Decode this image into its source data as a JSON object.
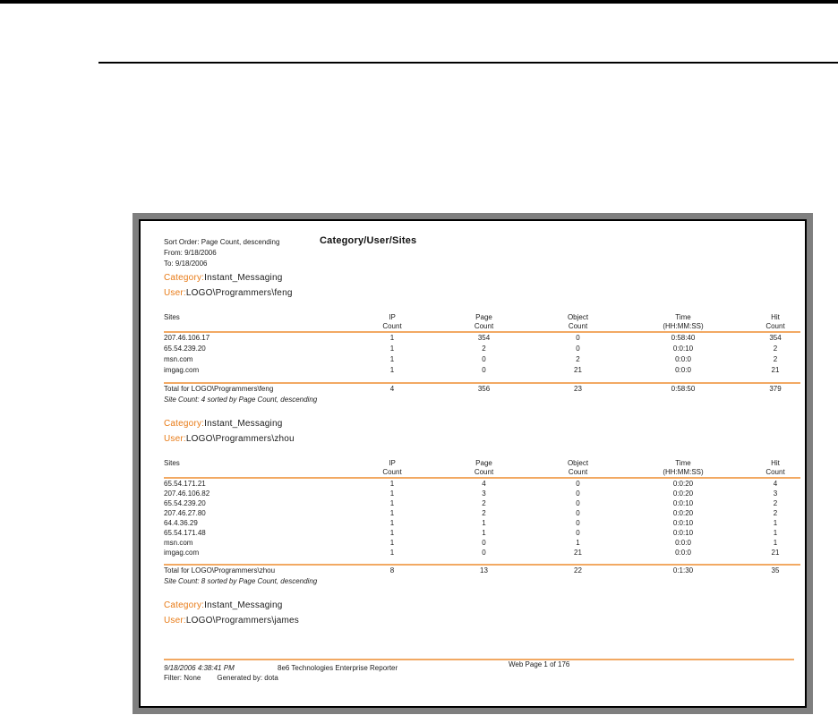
{
  "report": {
    "title": "Category/User/Sites",
    "meta_lines": [
      "Sort Order: Page Count, descending",
      "From: 9/18/2006",
      "To: 9/18/2006"
    ],
    "columns": [
      {
        "line1": "Sites",
        "line2": ""
      },
      {
        "line1": "IP",
        "line2": "Count"
      },
      {
        "line1": "Page",
        "line2": "Count"
      },
      {
        "line1": "Object",
        "line2": "Count"
      },
      {
        "line1": "Time",
        "line2": "(HH:MM:SS)"
      },
      {
        "line1": "Hit",
        "line2": "Count"
      }
    ],
    "sections": [
      {
        "category_label": "Category:",
        "category_value": "Instant_Messaging",
        "user_label": "User:",
        "user_value": "LOGO\\Programmers\\feng",
        "rows": [
          [
            "207.46.106.17",
            "1",
            "354",
            "0",
            "0:58:40",
            "354"
          ],
          [
            "65.54.239.20",
            "1",
            "2",
            "0",
            "0:0:10",
            "2"
          ],
          [
            "msn.com",
            "1",
            "0",
            "2",
            "0:0:0",
            "2"
          ],
          [
            "imgag.com",
            "1",
            "0",
            "21",
            "0:0:0",
            "21"
          ]
        ],
        "total_row": [
          "Total for LOGO\\Programmers\\feng",
          "4",
          "356",
          "23",
          "0:58:50",
          "379"
        ],
        "site_count_note": "Site Count: 4 sorted by Page Count, descending"
      },
      {
        "category_label": "Category:",
        "category_value": "Instant_Messaging",
        "user_label": "User:",
        "user_value": "LOGO\\Programmers\\zhou",
        "rows": [
          [
            "65.54.171.21",
            "1",
            "4",
            "0",
            "0:0:20",
            "4"
          ],
          [
            "207.46.106.82",
            "1",
            "3",
            "0",
            "0:0:20",
            "3"
          ],
          [
            "65.54.239.20",
            "1",
            "2",
            "0",
            "0:0:10",
            "2"
          ],
          [
            "207.46.27.80",
            "1",
            "2",
            "0",
            "0:0:20",
            "2"
          ],
          [
            "64.4.36.29",
            "1",
            "1",
            "0",
            "0:0:10",
            "1"
          ],
          [
            "65.54.171.48",
            "1",
            "1",
            "0",
            "0:0:10",
            "1"
          ],
          [
            "msn.com",
            "1",
            "0",
            "1",
            "0:0:0",
            "1"
          ],
          [
            "imgag.com",
            "1",
            "0",
            "21",
            "0:0:0",
            "21"
          ]
        ],
        "total_row": [
          "Total for LOGO\\Programmers\\zhou",
          "8",
          "13",
          "22",
          "0:1:30",
          "35"
        ],
        "site_count_note": "Site Count: 8 sorted by Page Count, descending"
      },
      {
        "category_label": "Category:",
        "category_value": "Instant_Messaging",
        "user_label": "User:",
        "user_value": "LOGO\\Programmers\\james"
      }
    ],
    "footer": {
      "generated_datetime": "9/18/2006 4:38:41 PM",
      "product": "8e6 Technologies Enterprise Reporter",
      "page_info": "Web Page 1 of 176",
      "filter": "Filter: None",
      "generated_by": "Generated by: dota"
    },
    "colors": {
      "label_orange": "#E87B17",
      "rule_orange": "#F2A963",
      "frame_gray": "#7F7F7F"
    }
  }
}
